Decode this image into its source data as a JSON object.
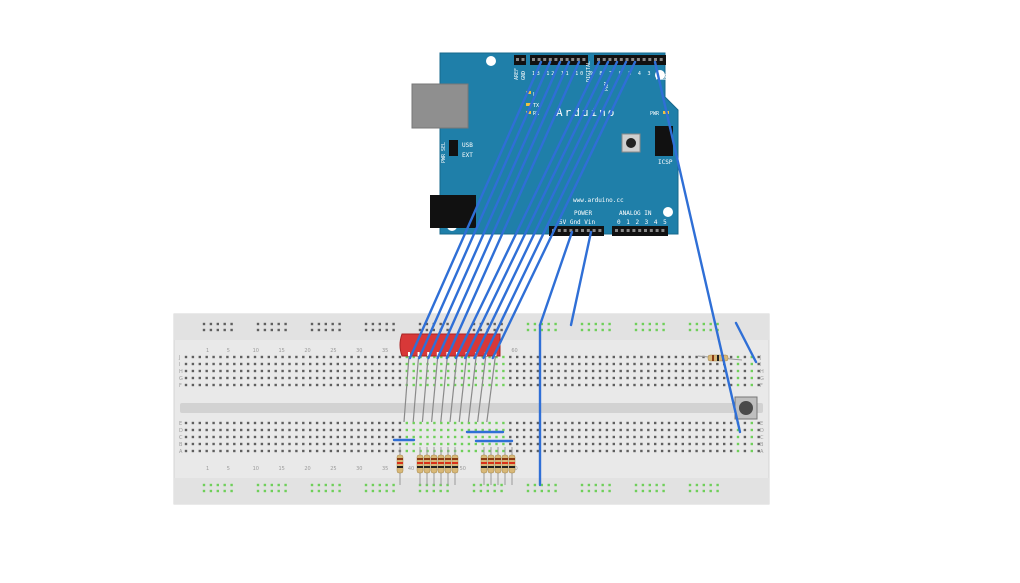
{
  "arduino": {
    "brand": "Arduino",
    "website": "www.arduino.cc",
    "pwr_sel": "PWR SEL",
    "usb": "USB",
    "ext": "EXT",
    "aref": "AREF",
    "gnd": "GND",
    "digital": "DIGITAL",
    "pwm": "PWM",
    "tx": "TX",
    "rx": "RX",
    "icsp": "ICSP",
    "power": "POWER",
    "analog_in": "ANALOG IN",
    "power_pins": "5V Gnd Vin",
    "analog_pins": "0 1 2 3 4 5",
    "pin_numbers": "13 12 11 10 9 8 7 6 5 4 3 2 1 0",
    "led_labels": [
      "L",
      "TX",
      "RX"
    ],
    "pwr_led": "PWR"
  },
  "breadboard": {
    "row_labels_top": [
      "J",
      "I",
      "H",
      "G",
      "F"
    ],
    "row_labels_bottom": [
      "E",
      "D",
      "C",
      "B",
      "A"
    ],
    "column_numbers": [
      "1",
      "5",
      "10",
      "15",
      "20",
      "25",
      "30",
      "35",
      "40",
      "45",
      "50",
      "55",
      "60"
    ]
  },
  "colors": {
    "board": "#1e7fa8",
    "wire": "#2f6fd6",
    "display": "#d83838",
    "breadboard": "#e8e8e8",
    "hole": "#5f5f5f",
    "active_hole": "#6fcf5a",
    "resistor": "#d8b878"
  }
}
